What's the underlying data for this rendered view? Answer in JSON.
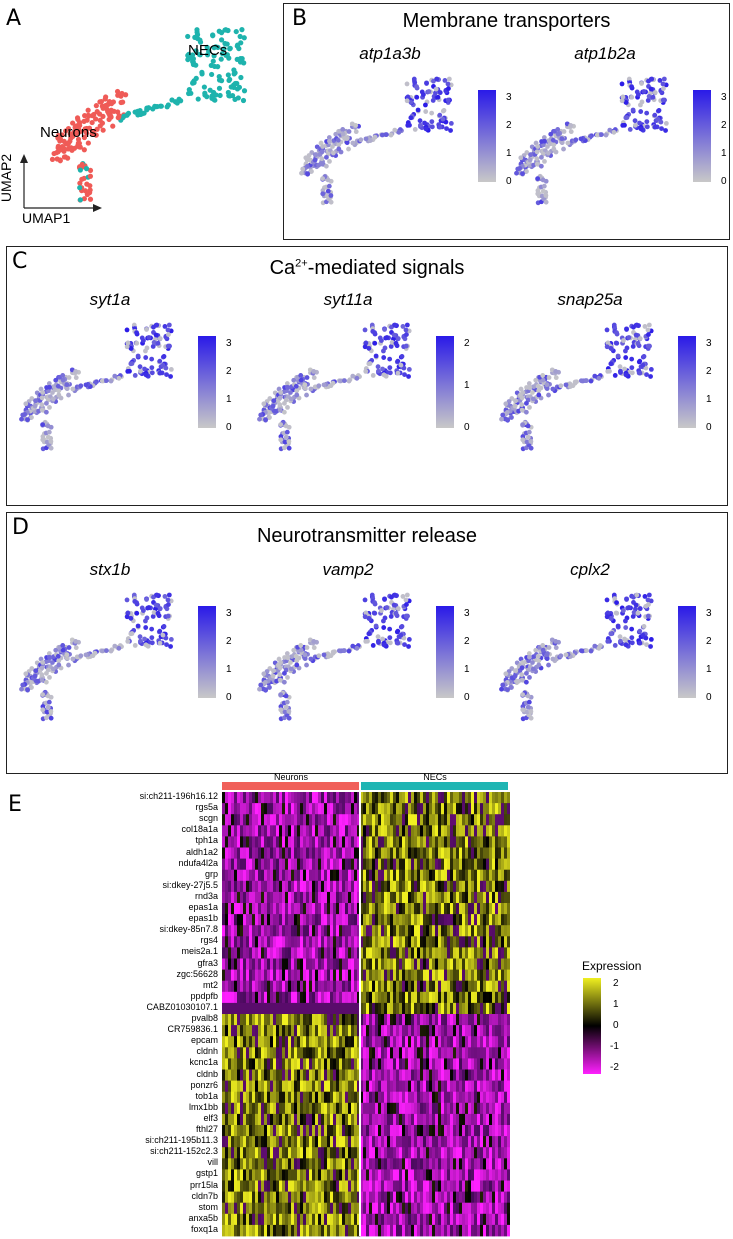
{
  "panels": {
    "A": {
      "letter": "A",
      "clusters": [
        "Neurons",
        "NECs"
      ],
      "x_axis": "UMAP1",
      "y_axis": "UMAP2"
    },
    "B": {
      "letter": "B",
      "title": "Membrane transporters",
      "genes": [
        {
          "name": "atp1a3b",
          "ticks": [
            "3",
            "2",
            "1",
            "0"
          ]
        },
        {
          "name": "atp1b2a",
          "ticks": [
            "3",
            "2",
            "1",
            "0"
          ]
        }
      ]
    },
    "C": {
      "letter": "C",
      "title_main": "Ca",
      "title_sup": "2+",
      "title_rest": "-mediated signals",
      "genes": [
        {
          "name": "syt1a",
          "ticks": [
            "3",
            "2",
            "1",
            "0"
          ]
        },
        {
          "name": "syt11a",
          "ticks": [
            "2",
            "1",
            "0"
          ]
        },
        {
          "name": "snap25a",
          "ticks": [
            "3",
            "2",
            "1",
            "0"
          ]
        }
      ]
    },
    "D": {
      "letter": "D",
      "title": "Neurotransmitter release",
      "genes": [
        {
          "name": "stx1b",
          "ticks": [
            "3",
            "2",
            "1",
            "0"
          ]
        },
        {
          "name": "vamp2",
          "ticks": [
            "3",
            "2",
            "1",
            "0"
          ]
        },
        {
          "name": "cplx2",
          "ticks": [
            "3",
            "2",
            "1",
            "0"
          ]
        }
      ]
    },
    "E": {
      "letter": "E",
      "groups": [
        "Neurons",
        "NECs"
      ],
      "group_colors": [
        "#f0605a",
        "#1fb5b3"
      ],
      "legend_title": "Expression",
      "legend_ticks": [
        "2",
        "1",
        "0",
        "-1",
        "-2"
      ],
      "genes": [
        "si:ch211-196h16.12",
        "rgs5a",
        "scgn",
        "col18a1a",
        "tph1a",
        "aldh1a2",
        "ndufa4l2a",
        "grp",
        "si:dkey-27j5.5",
        "rnd3a",
        "epas1a",
        "epas1b",
        "si:dkey-85n7.8",
        "rgs4",
        "meis2a.1",
        "gfra3",
        "zgc:56628",
        "mt2",
        "ppdpfb",
        "CABZ01030107.1",
        "pvalb8",
        "CR759836.1",
        "epcam",
        "cldnh",
        "kcnc1a",
        "cldnb",
        "ponzr6",
        "tob1a",
        "lmx1bb",
        "elf3",
        "fthl27",
        "si:ch211-195b11.3",
        "si:ch211-152c2.3",
        "vill",
        "gstp1",
        "prr15la",
        "cldn7b",
        "stom",
        "anxa5b",
        "foxq1a"
      ],
      "nec_high_gene_count": 20
    }
  },
  "colors": {
    "cluster_neurons": "#ef5b57",
    "cluster_necs": "#1eb3ad",
    "expr_low": "#c8c8c8",
    "expr_high": "#2a1ae8",
    "heat_high": "#f0f020",
    "heat_mid": "#000000",
    "heat_low": "#ff20ff"
  }
}
